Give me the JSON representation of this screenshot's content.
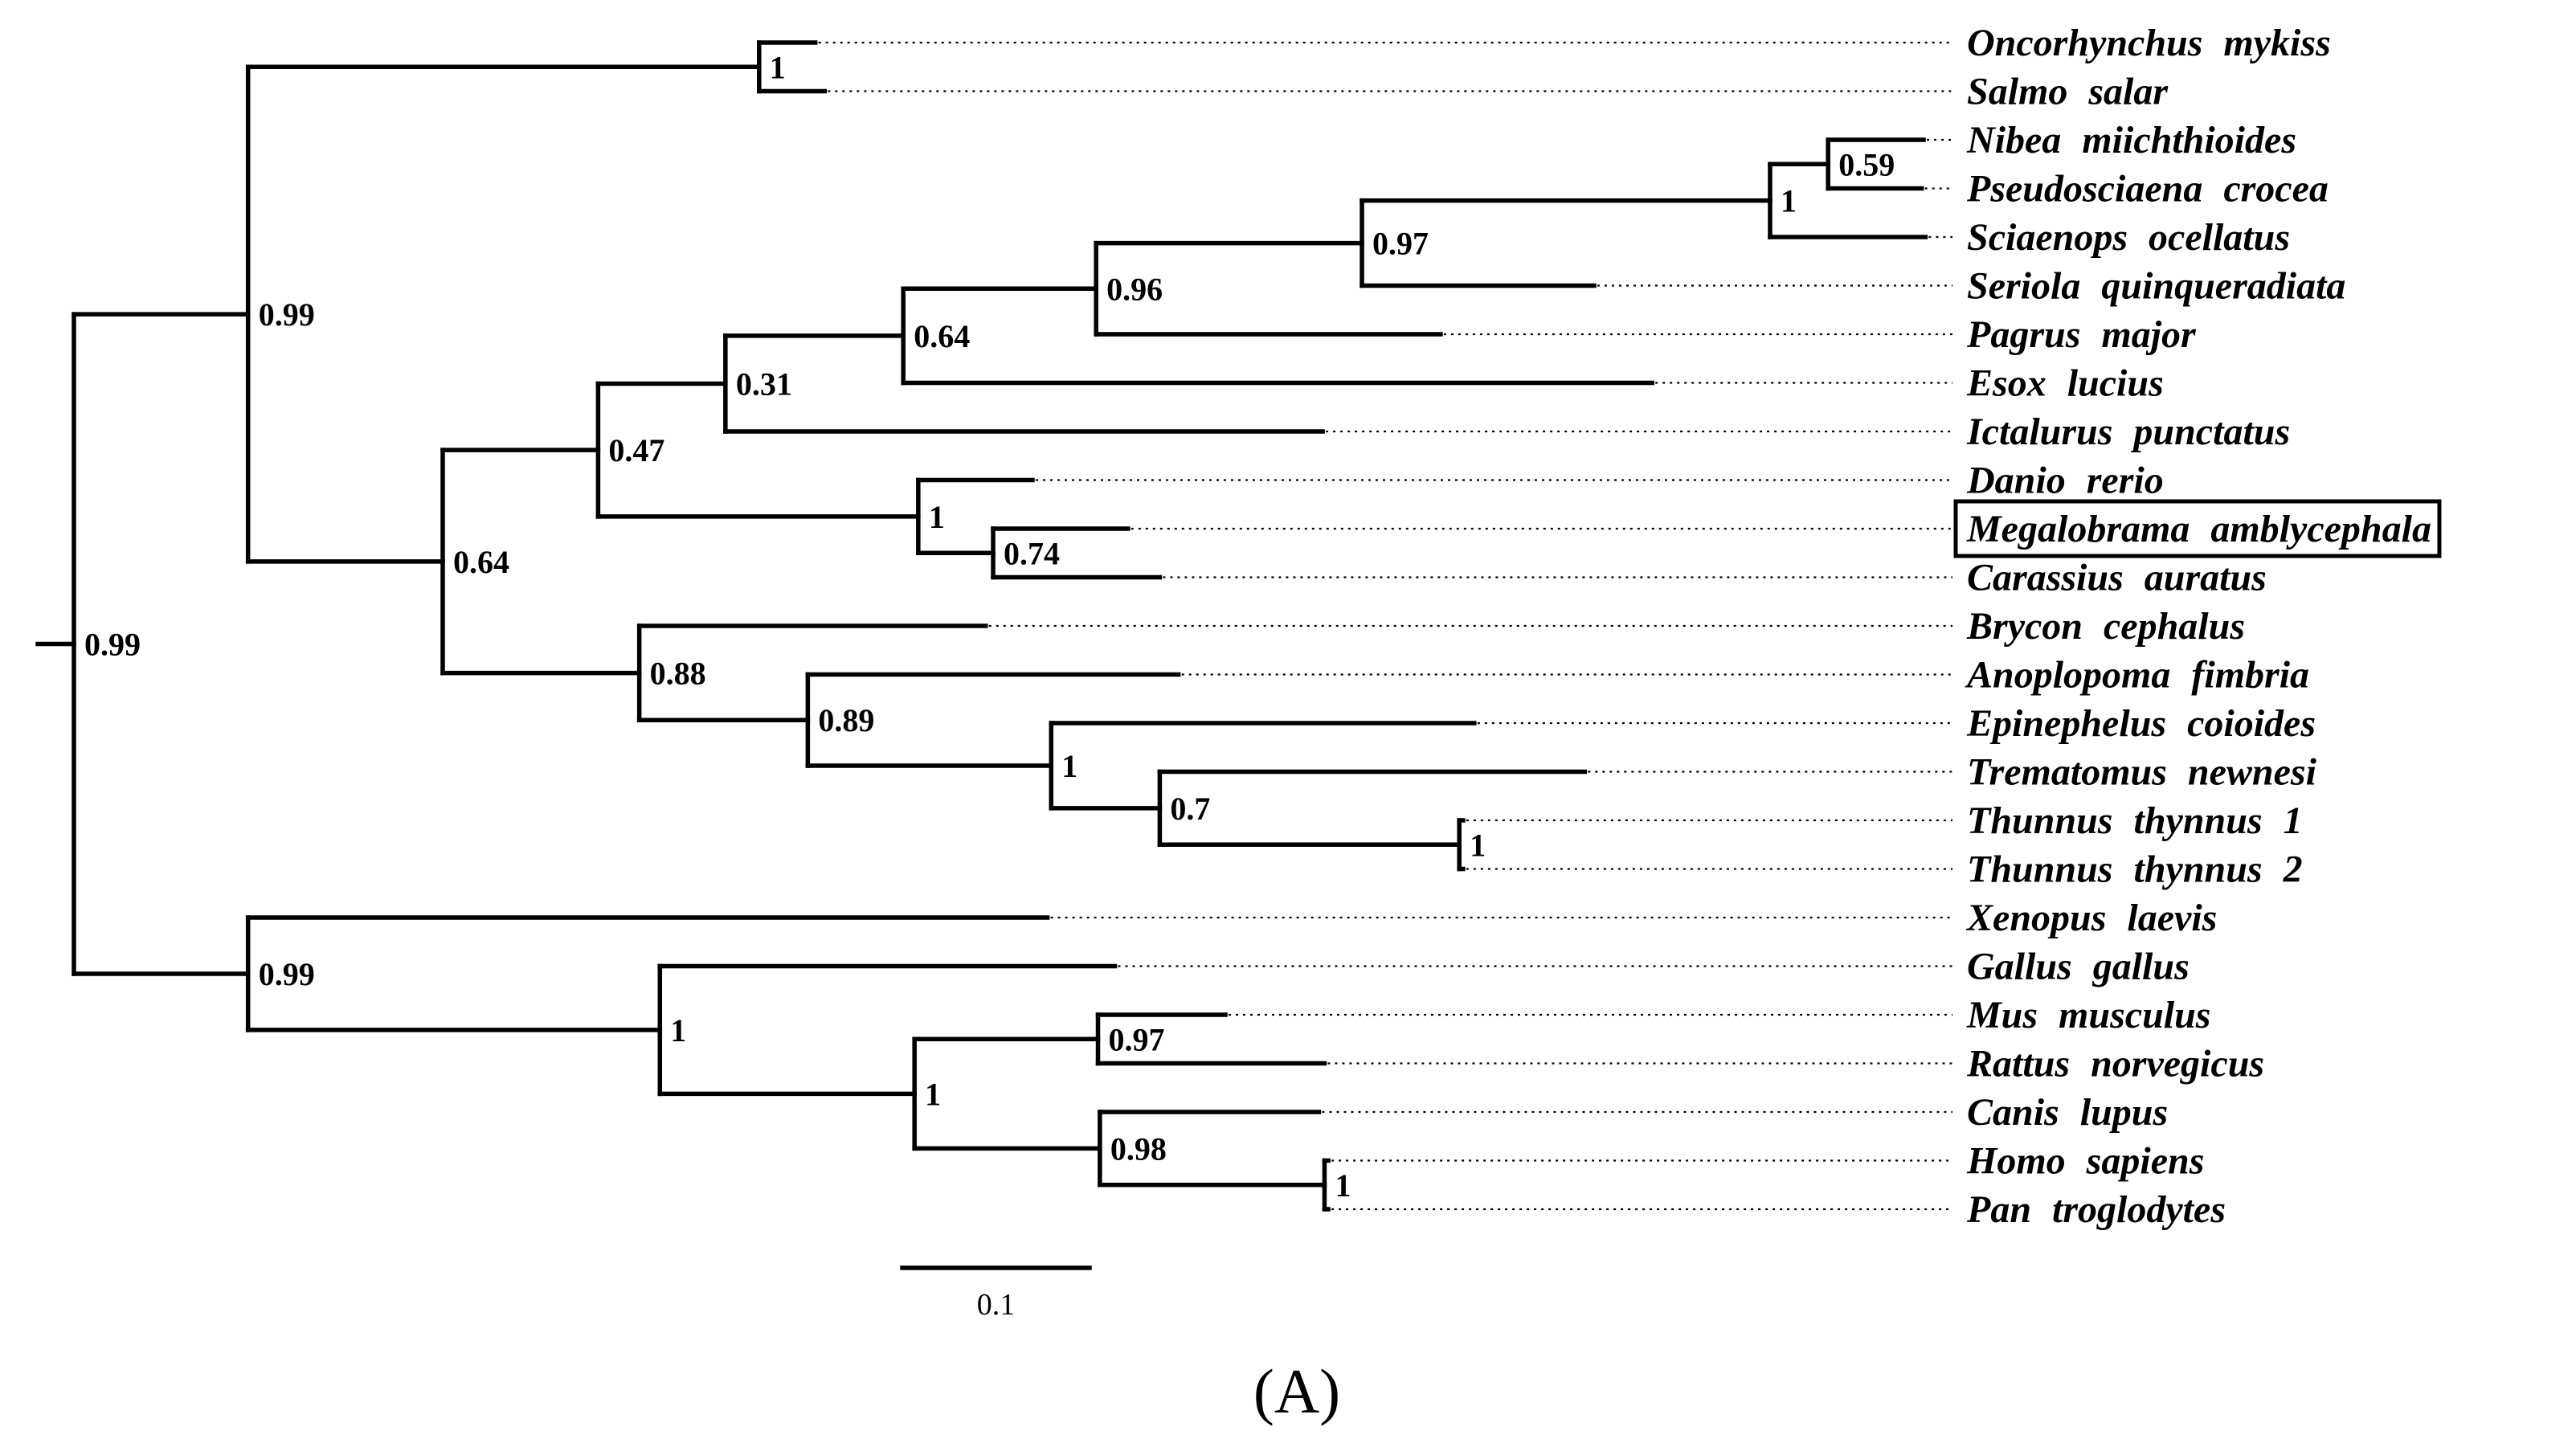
{
  "panel_label": "(A)",
  "scale_bar": {
    "label": "0.1",
    "length": 0.1
  },
  "highlighted_taxon": "Megalobrama amblycephala",
  "taxa": [
    "Oncorhynchus mykiss",
    "Salmo salar",
    "Nibea miichthioides",
    "Pseudosciaena crocea",
    "Sciaenops ocellatus",
    "Seriola quinqueradiata",
    "Pagrus major",
    "Esox lucius",
    "Ictalurus punctatus",
    "Danio rerio",
    "Megalobrama amblycephala",
    "Carassius auratus",
    "Brycon cephalus",
    "Anoplopoma fimbria",
    "Epinephelus coioides",
    "Trematomus newnesi",
    "Thunnus thynnus 1",
    "Thunnus thynnus 2",
    "Xenopus laevis",
    "Gallus gallus",
    "Mus musculus",
    "Rattus norvegicus",
    "Canis lupus",
    "Homo sapiens",
    "Pan troglodytes"
  ],
  "tree": {
    "support": "0.99",
    "children": [
      {
        "support": "0.99",
        "len": 0.093,
        "children": [
          {
            "support": "1",
            "len": 0.273,
            "children": [
              {
                "taxon": "Oncorhynchus mykiss",
                "len": 0.03
              },
              {
                "taxon": "Salmo salar",
                "len": 0.035
              }
            ]
          },
          {
            "support": "0.64",
            "len": 0.104,
            "children": [
              {
                "support": "0.47",
                "len": 0.083,
                "children": [
                  {
                    "support": "0.31",
                    "len": 0.068,
                    "children": [
                      {
                        "support": "0.64",
                        "len": 0.095,
                        "children": [
                          {
                            "support": "0.96",
                            "len": 0.103,
                            "children": [
                              {
                                "support": "0.97",
                                "len": 0.142,
                                "children": [
                                  {
                                    "support": "1",
                                    "len": 0.218,
                                    "children": [
                                      {
                                        "support": "0.59",
                                        "len": 0.031,
                                        "children": [
                                          {
                                            "taxon": "Nibea miichthioides",
                                            "len": 0.051
                                          },
                                          {
                                            "taxon": "Pseudosciaena crocea",
                                            "len": 0.05
                                          }
                                        ]
                                      },
                                      {
                                        "taxon": "Sciaenops ocellatus",
                                        "len": 0.083
                                      }
                                    ]
                                  },
                                  {
                                    "taxon": "Seriola quinqueradiata",
                                    "len": 0.124
                                  }
                                ]
                              },
                              {
                                "taxon": "Pagrus major",
                                "len": 0.184
                              }
                            ]
                          },
                          {
                            "taxon": "Esox lucius",
                            "len": 0.4
                          }
                        ]
                      },
                      {
                        "taxon": "Ictalurus punctatus",
                        "len": 0.319
                      }
                    ]
                  },
                  {
                    "support": "1",
                    "len": 0.171,
                    "children": [
                      {
                        "taxon": "Danio rerio",
                        "len": 0.061
                      },
                      {
                        "support": "0.74",
                        "len": 0.04,
                        "children": [
                          {
                            "taxon": "Megalobrama amblycephala",
                            "len": 0.072
                          },
                          {
                            "taxon": "Carassius auratus",
                            "len": 0.089
                          }
                        ]
                      }
                    ]
                  }
                ]
              },
              {
                "support": "0.88",
                "len": 0.105,
                "children": [
                  {
                    "taxon": "Brycon cephalus",
                    "len": 0.185
                  },
                  {
                    "support": "0.89",
                    "len": 0.09,
                    "children": [
                      {
                        "taxon": "Anoplopoma fimbria",
                        "len": 0.198
                      },
                      {
                        "support": "1",
                        "len": 0.13,
                        "children": [
                          {
                            "taxon": "Epinephelus coioides",
                            "len": 0.226
                          },
                          {
                            "support": "0.7",
                            "len": 0.058,
                            "children": [
                              {
                                "taxon": "Trematomus newnesi",
                                "len": 0.227
                              },
                              {
                                "support": "1",
                                "len": 0.16,
                                "children": [
                                  {
                                    "taxon": "Thunnus thynnus 1",
                                    "len": 0.002
                                  },
                                  {
                                    "taxon": "Thunnus thynnus 2",
                                    "len": 0.002
                                  }
                                ]
                              }
                            ]
                          }
                        ]
                      }
                    ]
                  }
                ]
              }
            ]
          }
        ]
      },
      {
        "support": "0.99",
        "len": 0.093,
        "children": [
          {
            "taxon": "Xenopus laevis",
            "len": 0.427
          },
          {
            "support": "1",
            "len": 0.22,
            "children": [
              {
                "taxon": "Gallus gallus",
                "len": 0.243
              },
              {
                "support": "1",
                "len": 0.136,
                "children": [
                  {
                    "support": "0.97",
                    "len": 0.098,
                    "children": [
                      {
                        "taxon": "Mus musculus",
                        "len": 0.068
                      },
                      {
                        "taxon": "Rattus norvegicus",
                        "len": 0.121
                      }
                    ]
                  },
                  {
                    "support": "0.98",
                    "len": 0.099,
                    "children": [
                      {
                        "taxon": "Canis lupus",
                        "len": 0.117
                      },
                      {
                        "support": "1",
                        "len": 0.12,
                        "children": [
                          {
                            "taxon": "Homo sapiens",
                            "len": 0.002
                          },
                          {
                            "taxon": "Pan troglodytes",
                            "len": 0.002
                          }
                        ]
                      }
                    ]
                  }
                ]
              }
            ]
          }
        ]
      }
    ]
  }
}
